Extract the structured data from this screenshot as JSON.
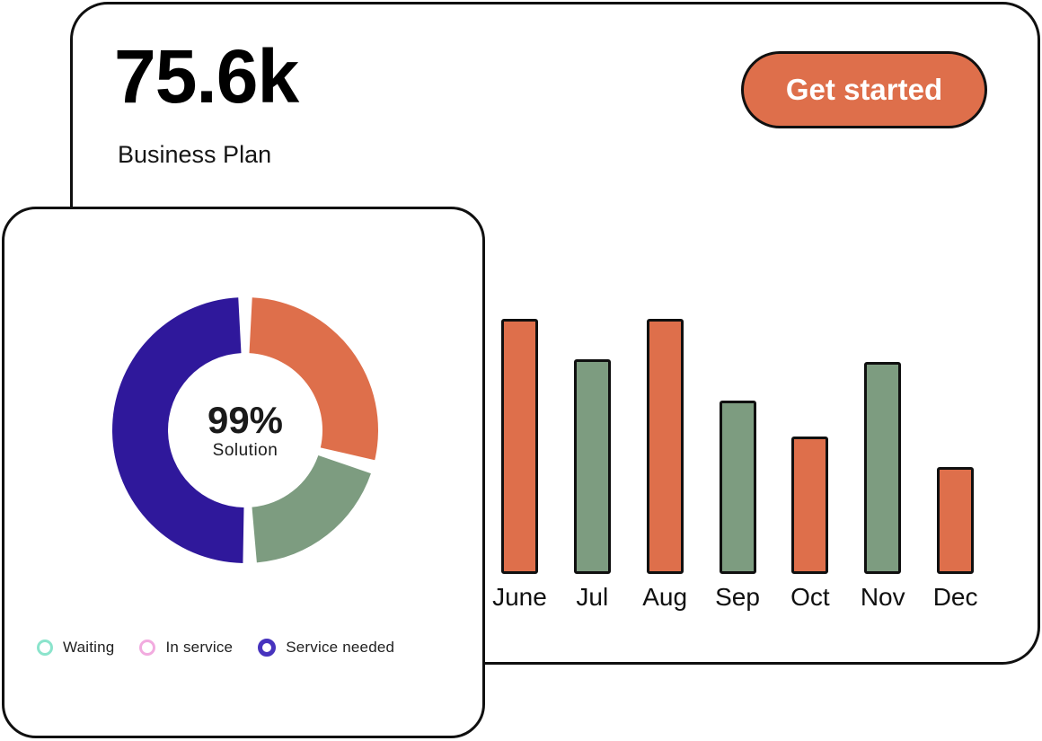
{
  "colors": {
    "orange": "#DE6F4B",
    "green": "#7D9C80",
    "purple": "#2F189B",
    "card_border": "#101010",
    "cta_text": "#FFFFFF"
  },
  "main_card": {
    "stat_value": "75.6k",
    "stat_label": "Business Plan",
    "cta_label": "Get started"
  },
  "donut_card": {
    "center_value": "99%",
    "center_label": "Solution"
  },
  "chart_data": [
    {
      "type": "bar",
      "title": "",
      "xlabel": "",
      "ylabel": "",
      "categories": [
        "June",
        "Jul",
        "Aug",
        "Sep",
        "Oct",
        "Nov",
        "Dec"
      ],
      "values": [
        100,
        84,
        100,
        68,
        54,
        83,
        42
      ],
      "colors": [
        "#DE6F4B",
        "#7D9C80",
        "#DE6F4B",
        "#7D9C80",
        "#DE6F4B",
        "#7D9C80",
        "#DE6F4B"
      ],
      "ylim": [
        0,
        100
      ],
      "grid": false,
      "legend_position": "none"
    },
    {
      "type": "pie",
      "donut": true,
      "title": "",
      "center_value": "99%",
      "center_label": "Solution",
      "segments": [
        {
          "name": "orange",
          "value_pct": 28,
          "start_deg": 3,
          "end_deg": 103,
          "color": "#DE6F4B"
        },
        {
          "name": "green",
          "value_pct": 18,
          "start_deg": 109,
          "end_deg": 175,
          "color": "#7D9C80"
        },
        {
          "name": "purple",
          "value_pct": 49,
          "start_deg": 181,
          "end_deg": 357,
          "color": "#2F189B"
        }
      ],
      "legend_position": "bottom",
      "legend": [
        {
          "label": "Waiting",
          "color": "#8BE4CC"
        },
        {
          "label": "In service",
          "color": "#F2ABDF"
        },
        {
          "label": "Service needed",
          "color": "#4733BE"
        }
      ]
    }
  ]
}
